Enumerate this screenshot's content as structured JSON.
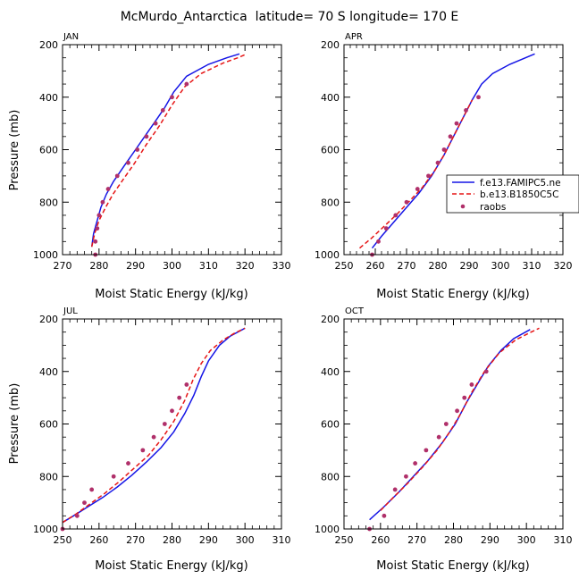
{
  "figure_title": "McMurdo_Antarctica  latitude= 70 S longitude= 170 E",
  "colors": {
    "model1": "#1515e6",
    "model2": "#e61515",
    "raobs": "#b0306a",
    "axis": "#000000"
  },
  "chart_data": [
    {
      "type": "line",
      "panel_label": "JAN",
      "xlabel": "Moist Static Energy (kJ/kg)",
      "ylabel": "Pressure (mb)",
      "xlim": [
        270,
        330
      ],
      "xticks": [
        "270",
        "280",
        "290",
        "300",
        "310",
        "320",
        "330"
      ],
      "ylim": [
        1000,
        200
      ],
      "yticks": [
        "200",
        "400",
        "600",
        "800",
        "1000"
      ],
      "series": [
        {
          "name": "f.e13.FAMIPC5.ne",
          "style": "solid",
          "x": [
            278.0,
            278.5,
            279.5,
            280.5,
            282.0,
            284.0,
            287.0,
            290.0,
            293.0,
            296.0,
            298.0,
            300.5,
            304.0,
            310.0,
            315.0,
            318.5
          ],
          "y": [
            970,
            920,
            870,
            820,
            770,
            720,
            660,
            600,
            540,
            480,
            440,
            380,
            320,
            275,
            250,
            235
          ]
        },
        {
          "name": "b.e13.B1850C5C",
          "style": "dashed",
          "x": [
            278.0,
            278.8,
            280.0,
            281.8,
            283.8,
            286.8,
            289.8,
            293.0,
            296.5,
            300.0,
            303.5,
            308.0,
            314.0,
            318.0,
            320.5
          ],
          "y": [
            970,
            920,
            870,
            820,
            770,
            710,
            650,
            580,
            510,
            430,
            360,
            310,
            270,
            250,
            235
          ]
        },
        {
          "name": "raobs",
          "style": "markers",
          "x": [
            279.0,
            279.0,
            279.5,
            280.0,
            281.0,
            282.5,
            285.0,
            288.0,
            290.5,
            293.0,
            295.5,
            297.5,
            300.0,
            304.0
          ],
          "y": [
            1000,
            950,
            900,
            850,
            800,
            750,
            700,
            650,
            600,
            550,
            500,
            450,
            400,
            350
          ]
        }
      ]
    },
    {
      "type": "line",
      "panel_label": "APR",
      "xlabel": "Moist Static Energy (kJ/kg)",
      "ylabel": "",
      "xlim": [
        250,
        320
      ],
      "xticks": [
        "250",
        "260",
        "270",
        "280",
        "290",
        "300",
        "310",
        "320"
      ],
      "ylim": [
        1000,
        200
      ],
      "yticks": [
        "200",
        "400",
        "600",
        "800",
        "1000"
      ],
      "series": [
        {
          "name": "f.e13.FAMIPC5.ne",
          "style": "solid",
          "x": [
            259.0,
            262.0,
            266.0,
            270.0,
            274.0,
            278.0,
            282.0,
            285.0,
            288.0,
            291.0,
            294.0,
            297.5,
            303.0,
            311.0
          ],
          "y": [
            975,
            930,
            875,
            820,
            765,
            700,
            620,
            550,
            480,
            410,
            350,
            310,
            275,
            235
          ]
        },
        {
          "name": "b.e13.B1850C5C",
          "style": "dashed",
          "x": [
            255.0,
            259.0,
            263.0,
            267.0,
            271.0,
            275.0,
            279.0,
            282.0,
            285.0,
            288.0,
            291.0
          ],
          "y": [
            975,
            935,
            890,
            845,
            795,
            745,
            680,
            620,
            550,
            480,
            410
          ]
        },
        {
          "name": "raobs",
          "style": "markers",
          "x": [
            259.0,
            261.0,
            263.5,
            266.5,
            270.0,
            273.5,
            277.0,
            280.0,
            282.0,
            284.0,
            286.0,
            289.0,
            293.0
          ],
          "y": [
            1000,
            950,
            900,
            850,
            800,
            750,
            700,
            650,
            600,
            550,
            500,
            450,
            400
          ]
        }
      ],
      "legend": {
        "position": "right",
        "entries": [
          "f.e13.FAMIPC5.ne",
          "b.e13.B1850C5C",
          "raobs"
        ]
      }
    },
    {
      "type": "line",
      "panel_label": "JUL",
      "xlabel": "Moist Static Energy (kJ/kg)",
      "ylabel": "Pressure (mb)",
      "xlim": [
        250,
        310
      ],
      "xticks": [
        "250",
        "260",
        "270",
        "280",
        "290",
        "300",
        "310"
      ],
      "ylim": [
        1000,
        200
      ],
      "yticks": [
        "200",
        "400",
        "600",
        "800",
        "1000"
      ],
      "series": [
        {
          "name": "f.e13.FAMIPC5.ne",
          "style": "solid",
          "x": [
            250.0,
            253.0,
            257.0,
            261.0,
            265.0,
            269.0,
            273.0,
            277.0,
            280.5,
            283.5,
            286.0,
            288.0,
            290.0,
            293.0,
            296.0,
            300.0
          ],
          "y": [
            975,
            950,
            915,
            880,
            840,
            795,
            745,
            690,
            630,
            560,
            490,
            420,
            360,
            300,
            265,
            235
          ]
        },
        {
          "name": "b.e13.B1850C5C",
          "style": "dashed",
          "x": [
            250.0,
            253.5,
            257.5,
            261.5,
            265.5,
            269.5,
            273.5,
            277.0,
            280.5,
            283.5,
            285.8,
            288.0,
            290.5,
            294.0,
            297.0,
            300.0
          ],
          "y": [
            975,
            945,
            905,
            865,
            820,
            770,
            720,
            660,
            590,
            510,
            430,
            370,
            320,
            280,
            255,
            235
          ]
        },
        {
          "name": "raobs",
          "style": "markers",
          "x": [
            250.0,
            254.0,
            256.0,
            258.0,
            264.0,
            268.0,
            272.0,
            275.0,
            278.0,
            280.0,
            282.0,
            284.0
          ],
          "y": [
            1000,
            950,
            900,
            850,
            800,
            750,
            700,
            650,
            600,
            550,
            500,
            450
          ]
        }
      ]
    },
    {
      "type": "line",
      "panel_label": "OCT",
      "xlabel": "Moist Static Energy (kJ/kg)",
      "ylabel": "",
      "xlim": [
        250,
        310
      ],
      "xticks": [
        "250",
        "260",
        "270",
        "280",
        "290",
        "300",
        "310"
      ],
      "ylim": [
        1000,
        200
      ],
      "yticks": [
        "200",
        "400",
        "600",
        "800",
        "1000"
      ],
      "series": [
        {
          "name": "f.e13.FAMIPC5.ne",
          "style": "solid",
          "x": [
            257.0,
            261.0,
            265.0,
            269.0,
            273.0,
            277.0,
            280.5,
            283.5,
            286.5,
            289.5,
            293.0,
            296.5,
            301.0
          ],
          "y": [
            965,
            915,
            860,
            800,
            740,
            670,
            600,
            520,
            450,
            380,
            320,
            275,
            240
          ]
        },
        {
          "name": "b.e13.B1850C5C",
          "style": "dashed",
          "x": [
            260.0,
            263.5,
            267.5,
            271.5,
            275.5,
            279.0,
            282.0,
            285.0,
            288.5,
            292.5,
            297.0,
            300.5,
            303.5
          ],
          "y": [
            930,
            880,
            825,
            765,
            700,
            630,
            560,
            480,
            400,
            330,
            280,
            255,
            235
          ]
        },
        {
          "name": "raobs",
          "style": "markers",
          "x": [
            257.0,
            261.0,
            264.0,
            267.0,
            269.5,
            272.5,
            276.0,
            278.0,
            281.0,
            283.0,
            285.0,
            289.0
          ],
          "y": [
            1000,
            950,
            850,
            800,
            750,
            700,
            650,
            600,
            550,
            500,
            450,
            400
          ]
        }
      ]
    }
  ]
}
